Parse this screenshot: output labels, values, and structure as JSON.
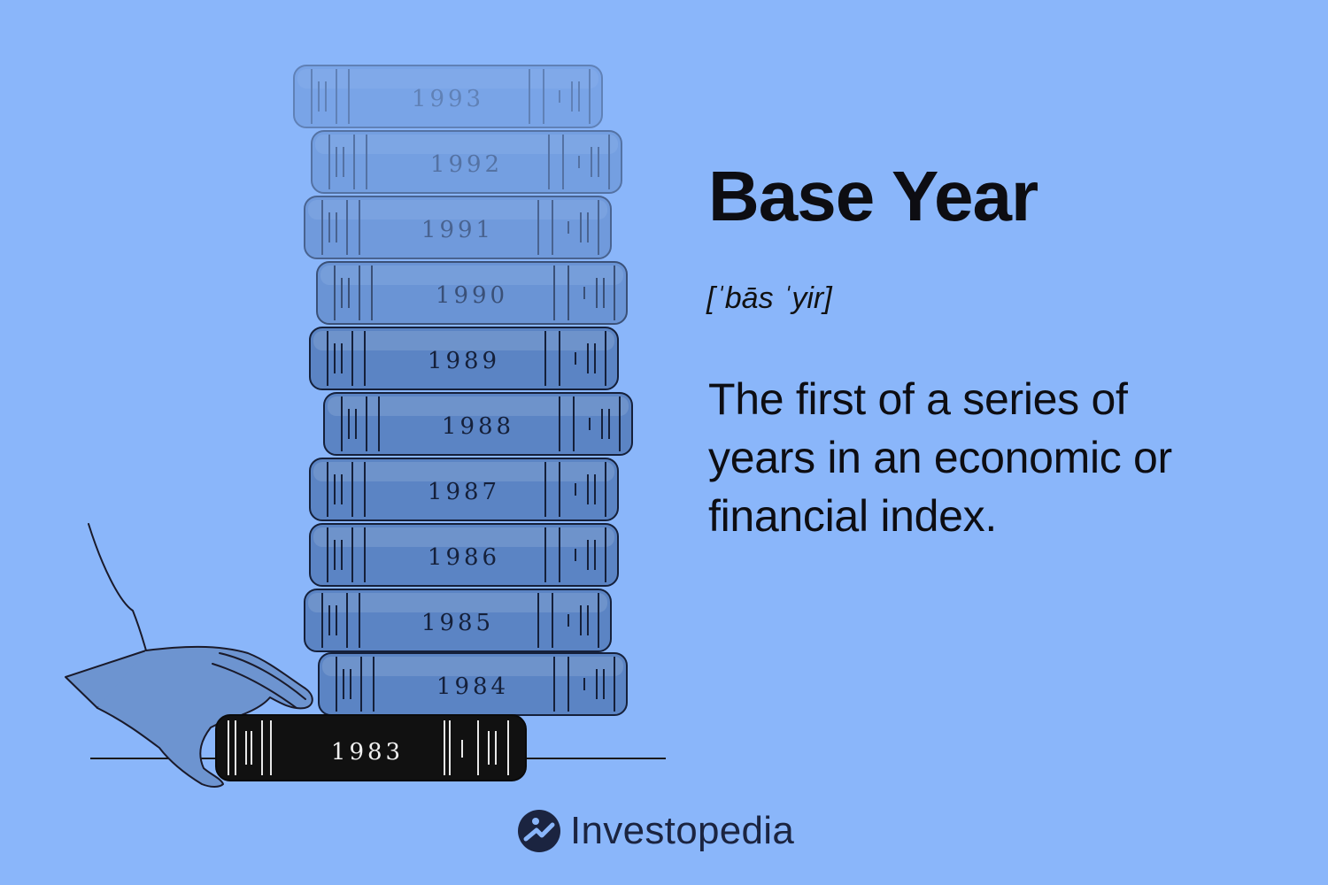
{
  "term": {
    "title": "Base Year",
    "pronunciation": "[ˈbās ˈyir]",
    "definition": "The first of a series of years in an economic or financial index."
  },
  "illustration": {
    "books": [
      {
        "label": "1993",
        "opacity": 0.35
      },
      {
        "label": "1992",
        "opacity": 0.45
      },
      {
        "label": "1991",
        "opacity": 0.55
      },
      {
        "label": "1990",
        "opacity": 0.68
      },
      {
        "label": "1989",
        "opacity": 1
      },
      {
        "label": "1988",
        "opacity": 1
      },
      {
        "label": "1987",
        "opacity": 1
      },
      {
        "label": "1986",
        "opacity": 1
      },
      {
        "label": "1985",
        "opacity": 1
      },
      {
        "label": "1984",
        "opacity": 1
      }
    ],
    "base_book": {
      "label": "1983"
    }
  },
  "brand": {
    "name": "Investopedia",
    "logo_icon": "investopedia-logo-icon"
  },
  "colors": {
    "background": "#8ab6fa",
    "book_fill": "#5b84c4",
    "base_book_fill": "#111111",
    "text": "#0d0d12"
  }
}
